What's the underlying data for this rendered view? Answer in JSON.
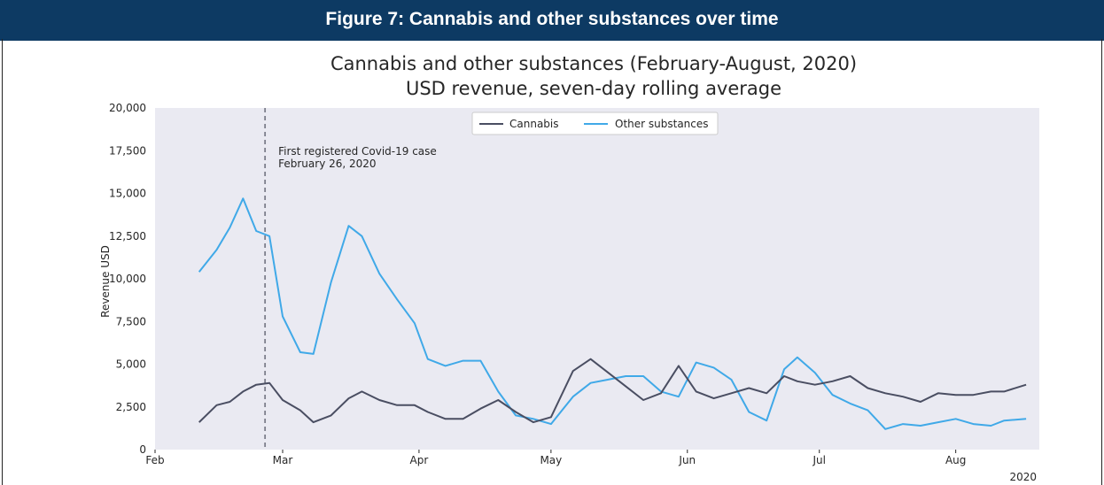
{
  "banner": {
    "title": "Figure 7: Cannabis and other substances over time"
  },
  "colors": {
    "banner": "#0d3a63",
    "plot_bg": "#eaeaf2",
    "cannabis": "#4a4e62",
    "other": "#40a9e8",
    "vline": "#7d7f8c"
  },
  "chart_data": {
    "type": "line",
    "title_line1": "Cannabis and other substances (February-August, 2020)",
    "title_line2": "USD revenue, seven-day rolling average",
    "xlabel": "",
    "ylabel": "Revenue USD",
    "ylim": [
      0,
      20000
    ],
    "yticks": [
      0,
      2500,
      5000,
      7500,
      10000,
      12500,
      15000,
      17500,
      20000
    ],
    "ytick_labels": [
      "0",
      "2,500",
      "5,000",
      "7,500",
      "10,000",
      "12,500",
      "15,000",
      "17,500",
      "20,000"
    ],
    "xlim": [
      "2020-02-01",
      "2020-08-20"
    ],
    "xticks": [
      {
        "label": "Feb",
        "date": "2020-02-01"
      },
      {
        "label": "Mar",
        "date": "2020-03-01"
      },
      {
        "label": "Apr",
        "date": "2020-04-01"
      },
      {
        "label": "May",
        "date": "2020-05-01"
      },
      {
        "label": "Jun",
        "date": "2020-06-01"
      },
      {
        "label": "Jul",
        "date": "2020-07-01"
      },
      {
        "label": "Aug",
        "date": "2020-08-01"
      }
    ],
    "year_label": "2020",
    "grid": false,
    "legend_position": "top-center",
    "annotation": {
      "date": "2020-02-26",
      "line1": "First registered Covid-19 case",
      "line2": "February 26, 2020"
    },
    "x": [
      "2020-02-11",
      "2020-02-15",
      "2020-02-18",
      "2020-02-21",
      "2020-02-24",
      "2020-02-27",
      "2020-03-01",
      "2020-03-05",
      "2020-03-08",
      "2020-03-12",
      "2020-03-16",
      "2020-03-19",
      "2020-03-23",
      "2020-03-27",
      "2020-03-31",
      "2020-04-03",
      "2020-04-07",
      "2020-04-11",
      "2020-04-15",
      "2020-04-19",
      "2020-04-23",
      "2020-04-27",
      "2020-05-01",
      "2020-05-06",
      "2020-05-10",
      "2020-05-14",
      "2020-05-18",
      "2020-05-22",
      "2020-05-26",
      "2020-05-30",
      "2020-06-03",
      "2020-06-07",
      "2020-06-11",
      "2020-06-15",
      "2020-06-19",
      "2020-06-23",
      "2020-06-26",
      "2020-06-30",
      "2020-07-04",
      "2020-07-08",
      "2020-07-12",
      "2020-07-16",
      "2020-07-20",
      "2020-07-24",
      "2020-07-28",
      "2020-08-01",
      "2020-08-05",
      "2020-08-09",
      "2020-08-12",
      "2020-08-17"
    ],
    "series": [
      {
        "name": "Cannabis",
        "values": [
          1600,
          2600,
          2800,
          3400,
          3800,
          3900,
          2900,
          2300,
          1600,
          2000,
          3000,
          3400,
          2900,
          2600,
          2600,
          2200,
          1800,
          1800,
          2400,
          2900,
          2200,
          1600,
          1900,
          4600,
          5300,
          4500,
          3700,
          2900,
          3300,
          4900,
          3400,
          3000,
          3300,
          3600,
          3300,
          4300,
          4000,
          3800,
          4000,
          4300,
          3600,
          3300,
          3100,
          2800,
          3300,
          3200,
          3200,
          3400,
          3400,
          3800
        ],
        "color": "#4a4e62"
      },
      {
        "name": "Other substances",
        "values": [
          10400,
          11700,
          13000,
          14700,
          12800,
          12500,
          7800,
          5700,
          5600,
          9800,
          13100,
          12500,
          10300,
          8800,
          7400,
          5300,
          4900,
          5200,
          5200,
          3400,
          2000,
          1800,
          1500,
          3100,
          3900,
          4100,
          4300,
          4300,
          3400,
          3100,
          5100,
          4800,
          4100,
          2200,
          1700,
          4700,
          5400,
          4500,
          3200,
          2700,
          2300,
          1200,
          1500,
          1400,
          1600,
          1800,
          1500,
          1400,
          1700,
          1800
        ],
        "color": "#40a9e8"
      }
    ]
  }
}
